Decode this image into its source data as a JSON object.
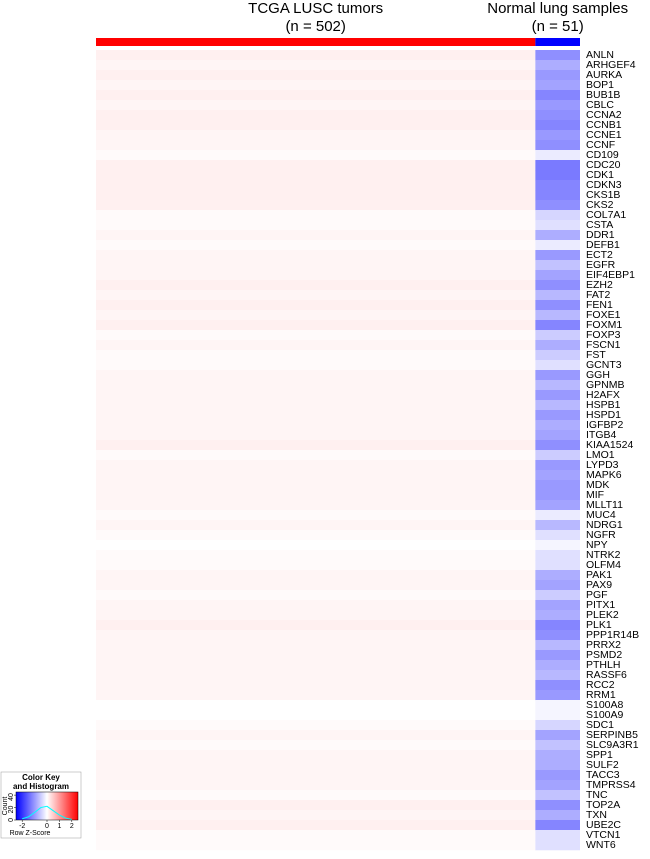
{
  "chart_data": {
    "type": "heatmap",
    "zlim": [
      -2.5,
      2.5
    ],
    "colors": [
      "#0000ff",
      "#ffffff",
      "#ff0000"
    ],
    "groups": [
      {
        "label": "TCGA LUSC tumors",
        "n_label": "(n = 502)",
        "n": 502,
        "color": "#ff0000",
        "values": [
          0.15,
          0.1,
          0.15,
          0.1,
          0.15,
          0.1,
          0.15,
          0.15,
          0.1,
          0.1,
          0.05,
          0.15,
          0.15,
          0.15,
          0.15,
          0.15,
          0.05,
          0.05,
          0.1,
          0.05,
          0.1,
          0.1,
          0.1,
          0.15,
          0.1,
          0.15,
          0.1,
          0.15,
          0.05,
          0.1,
          0.05,
          0.05,
          0.1,
          0.1,
          0.1,
          0.1,
          0.1,
          0.1,
          0.1,
          0.15,
          0.05,
          0.1,
          0.1,
          0.1,
          0.1,
          0.1,
          0.05,
          0.1,
          0.05,
          0.0,
          0.05,
          0.05,
          0.1,
          0.1,
          0.05,
          0.1,
          0.1,
          0.15,
          0.1,
          0.1,
          0.1,
          0.1,
          0.1,
          0.1,
          0.1,
          0.0,
          0.0,
          0.05,
          0.1,
          0.05,
          0.1,
          0.1,
          0.1,
          0.1,
          0.05,
          0.15,
          0.1,
          0.15,
          0.05,
          0.05
        ]
      },
      {
        "label": "Normal lung samples",
        "n_label": "(n = 51)",
        "n": 51,
        "color": "#0000ff",
        "values": [
          -1.1,
          -0.8,
          -1.0,
          -0.9,
          -1.2,
          -1.0,
          -1.1,
          -1.2,
          -1.0,
          -1.1,
          -0.2,
          -1.3,
          -1.3,
          -1.2,
          -1.2,
          -1.1,
          -0.4,
          -0.3,
          -0.8,
          -0.2,
          -1.0,
          -0.6,
          -0.9,
          -1.1,
          -0.7,
          -1.1,
          -0.7,
          -1.2,
          -0.5,
          -0.8,
          -0.5,
          -0.3,
          -1.0,
          -0.7,
          -1.0,
          -0.7,
          -1.0,
          -0.8,
          -0.9,
          -1.1,
          -0.5,
          -1.0,
          -0.9,
          -1.0,
          -1.0,
          -0.9,
          -0.2,
          -0.7,
          -0.3,
          -0.1,
          -0.3,
          -0.3,
          -0.8,
          -0.9,
          -0.5,
          -0.9,
          -0.8,
          -1.2,
          -1.1,
          -0.7,
          -1.0,
          -0.8,
          -0.7,
          -1.1,
          -1.0,
          -0.1,
          -0.1,
          -0.4,
          -0.9,
          -0.6,
          -0.8,
          -0.8,
          -1.0,
          -0.9,
          -0.6,
          -1.1,
          -0.8,
          -1.2,
          -0.3,
          -0.3
        ]
      }
    ],
    "rows": [
      "ANLN",
      "ARHGEF4",
      "AURKA",
      "BOP1",
      "BUB1B",
      "CBLC",
      "CCNA2",
      "CCNB1",
      "CCNE1",
      "CCNF",
      "CD109",
      "CDC20",
      "CDK1",
      "CDKN3",
      "CKS1B",
      "CKS2",
      "COL7A1",
      "CSTA",
      "DDR1",
      "DEFB1",
      "ECT2",
      "EGFR",
      "EIF4EBP1",
      "EZH2",
      "FAT2",
      "FEN1",
      "FOXE1",
      "FOXM1",
      "FOXP3",
      "FSCN1",
      "FST",
      "GCNT3",
      "GGH",
      "GPNMB",
      "H2AFX",
      "HSPB1",
      "HSPD1",
      "IGFBP2",
      "ITGB4",
      "KIAA1524",
      "LMO1",
      "LYPD3",
      "MAPK6",
      "MDK",
      "MIF",
      "MLLT11",
      "MUC4",
      "NDRG1",
      "NGFR",
      "NPY",
      "NTRK2",
      "OLFM4",
      "PAK1",
      "PAX9",
      "PGF",
      "PITX1",
      "PLEK2",
      "PLK1",
      "PPP1R14B",
      "PRRX2",
      "PSMD2",
      "PTHLH",
      "RASSF6",
      "RCC2",
      "RRM1",
      "S100A8",
      "S100A9",
      "SDC1",
      "SERPINB5",
      "SLC9A3R1",
      "SPP1",
      "SULF2",
      "TACC3",
      "TMPRSS4",
      "TNC",
      "TOP2A",
      "TXN",
      "UBE2C",
      "VTCN1",
      "WNT6"
    ],
    "color_key": {
      "title": "Color Key",
      "subtitle": "and Histogram",
      "xlabel": "Row Z-Score",
      "ylabel": "Count",
      "xticks": [
        -2,
        0,
        1,
        2
      ],
      "ylim": [
        0,
        45
      ],
      "yticks": [
        0,
        20,
        40
      ],
      "histogram": {
        "x": [
          -2,
          -1.5,
          -1,
          -0.5,
          0,
          0.5,
          1,
          1.5,
          2
        ],
        "counts": [
          2,
          5,
          12,
          20,
          22,
          15,
          8,
          3,
          1
        ],
        "color": "#00ffff"
      }
    }
  }
}
